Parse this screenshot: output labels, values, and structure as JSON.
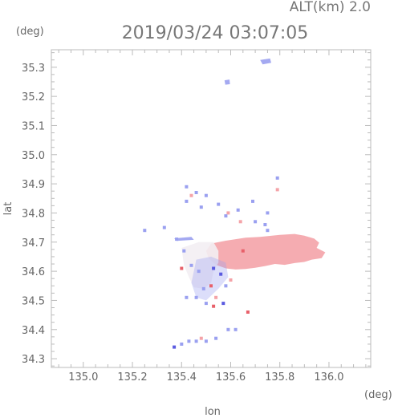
{
  "chart_data": {
    "type": "heatmap",
    "title": "2019/03/24 03:07:05",
    "subtitle": "ALT(km) 2.0",
    "xlabel": "lon",
    "ylabel": "lat",
    "x_unit": "(deg)",
    "y_unit": "(deg)",
    "xlim": [
      134.87,
      136.17
    ],
    "ylim": [
      34.27,
      35.36
    ],
    "x_ticks": [
      135.0,
      135.2,
      135.4,
      135.6,
      135.8,
      136.0
    ],
    "x_tick_labels": [
      "135.0",
      "135.2",
      "135.4",
      "135.6",
      "135.8",
      "136.0"
    ],
    "y_ticks": [
      34.3,
      34.4,
      34.5,
      34.6,
      34.7,
      34.8,
      34.9,
      35.0,
      35.1,
      35.2,
      35.3
    ],
    "y_tick_labels": [
      "34.3",
      "34.4",
      "34.5",
      "34.6",
      "34.7",
      "34.8",
      "34.9",
      "35.0",
      "35.1",
      "35.2",
      "35.3"
    ],
    "colors": {
      "positive": "#f4a3a8",
      "positive_strong": "#e8606a",
      "negative": "#9aa0f0",
      "negative_strong": "#5a5ae0",
      "neutral": "#f3eef3"
    },
    "regions": [
      {
        "kind": "main-echo",
        "sign": "positive",
        "polygon": [
          [
            135.52,
            34.695
          ],
          [
            135.58,
            34.705
          ],
          [
            135.66,
            34.715
          ],
          [
            135.72,
            34.718
          ],
          [
            135.8,
            34.725
          ],
          [
            135.86,
            34.728
          ],
          [
            135.9,
            34.722
          ],
          [
            135.94,
            34.712
          ],
          [
            135.96,
            34.698
          ],
          [
            135.95,
            34.68
          ],
          [
            135.985,
            34.665
          ],
          [
            135.97,
            34.645
          ],
          [
            135.93,
            34.64
          ],
          [
            135.9,
            34.632
          ],
          [
            135.86,
            34.628
          ],
          [
            135.82,
            34.622
          ],
          [
            135.78,
            34.625
          ],
          [
            135.74,
            34.618
          ],
          [
            135.7,
            34.612
          ],
          [
            135.66,
            34.608
          ],
          [
            135.62,
            34.606
          ],
          [
            135.58,
            34.61
          ],
          [
            135.54,
            34.622
          ],
          [
            135.51,
            34.645
          ],
          [
            135.5,
            34.67
          ]
        ]
      },
      {
        "kind": "neutral-echo",
        "sign": "neutral",
        "polygon": [
          [
            135.4,
            34.68
          ],
          [
            135.47,
            34.7
          ],
          [
            135.53,
            34.7
          ],
          [
            135.55,
            34.67
          ],
          [
            135.55,
            34.63
          ],
          [
            135.53,
            34.6
          ],
          [
            135.52,
            34.56
          ],
          [
            135.49,
            34.54
          ],
          [
            135.45,
            34.545
          ],
          [
            135.43,
            34.58
          ],
          [
            135.41,
            34.62
          ]
        ]
      },
      {
        "kind": "mixed-echo",
        "sign": "negative",
        "polygon": [
          [
            135.46,
            34.64
          ],
          [
            135.52,
            34.65
          ],
          [
            135.58,
            34.63
          ],
          [
            135.59,
            34.58
          ],
          [
            135.55,
            34.54
          ],
          [
            135.5,
            34.5
          ],
          [
            135.46,
            34.51
          ],
          [
            135.44,
            34.56
          ]
        ]
      },
      {
        "kind": "cell",
        "sign": "negative",
        "polygon": [
          [
            135.72,
            35.325
          ],
          [
            135.76,
            35.33
          ],
          [
            135.765,
            35.315
          ],
          [
            135.73,
            35.31
          ]
        ]
      },
      {
        "kind": "cell",
        "sign": "negative",
        "polygon": [
          [
            135.575,
            35.255
          ],
          [
            135.595,
            35.258
          ],
          [
            135.597,
            35.242
          ],
          [
            135.578,
            35.24
          ]
        ]
      },
      {
        "kind": "cell",
        "sign": "negative",
        "polygon": [
          [
            135.37,
            34.713
          ],
          [
            135.44,
            34.718
          ],
          [
            135.45,
            34.708
          ],
          [
            135.38,
            34.704
          ]
        ]
      }
    ],
    "speckles": [
      {
        "lon": 135.42,
        "lat": 34.89,
        "sign": "negative"
      },
      {
        "lon": 135.46,
        "lat": 34.87,
        "sign": "negative"
      },
      {
        "lon": 135.44,
        "lat": 34.86,
        "sign": "positive"
      },
      {
        "lon": 135.5,
        "lat": 34.86,
        "sign": "negative"
      },
      {
        "lon": 135.42,
        "lat": 34.84,
        "sign": "negative"
      },
      {
        "lon": 135.48,
        "lat": 34.82,
        "sign": "negative"
      },
      {
        "lon": 135.55,
        "lat": 34.83,
        "sign": "negative"
      },
      {
        "lon": 135.59,
        "lat": 34.8,
        "sign": "positive"
      },
      {
        "lon": 135.58,
        "lat": 34.79,
        "sign": "negative"
      },
      {
        "lon": 135.63,
        "lat": 34.81,
        "sign": "negative"
      },
      {
        "lon": 135.64,
        "lat": 34.77,
        "sign": "positive"
      },
      {
        "lon": 135.69,
        "lat": 34.84,
        "sign": "negative"
      },
      {
        "lon": 135.7,
        "lat": 34.77,
        "sign": "negative"
      },
      {
        "lon": 135.74,
        "lat": 34.76,
        "sign": "negative"
      },
      {
        "lon": 135.75,
        "lat": 34.8,
        "sign": "negative"
      },
      {
        "lon": 135.79,
        "lat": 34.92,
        "sign": "negative"
      },
      {
        "lon": 135.79,
        "lat": 34.88,
        "sign": "positive"
      },
      {
        "lon": 135.75,
        "lat": 34.74,
        "sign": "negative"
      },
      {
        "lon": 135.33,
        "lat": 34.75,
        "sign": "negative"
      },
      {
        "lon": 135.25,
        "lat": 34.74,
        "sign": "negative"
      },
      {
        "lon": 135.38,
        "lat": 34.71,
        "sign": "negative"
      },
      {
        "lon": 135.41,
        "lat": 34.67,
        "sign": "negative"
      },
      {
        "lon": 135.44,
        "lat": 34.62,
        "sign": "negative"
      },
      {
        "lon": 135.4,
        "lat": 34.61,
        "sign": "positive_strong"
      },
      {
        "lon": 135.47,
        "lat": 34.6,
        "sign": "negative"
      },
      {
        "lon": 135.53,
        "lat": 34.61,
        "sign": "negative_strong"
      },
      {
        "lon": 135.56,
        "lat": 34.59,
        "sign": "negative_strong"
      },
      {
        "lon": 135.58,
        "lat": 34.55,
        "sign": "negative"
      },
      {
        "lon": 135.52,
        "lat": 34.55,
        "sign": "positive_strong"
      },
      {
        "lon": 135.49,
        "lat": 34.54,
        "sign": "negative"
      },
      {
        "lon": 135.54,
        "lat": 34.51,
        "sign": "positive"
      },
      {
        "lon": 135.57,
        "lat": 34.49,
        "sign": "negative_strong"
      },
      {
        "lon": 135.5,
        "lat": 34.49,
        "sign": "negative"
      },
      {
        "lon": 135.53,
        "lat": 34.48,
        "sign": "positive_strong"
      },
      {
        "lon": 135.42,
        "lat": 34.51,
        "sign": "negative"
      },
      {
        "lon": 135.46,
        "lat": 34.51,
        "sign": "negative"
      },
      {
        "lon": 135.67,
        "lat": 34.46,
        "sign": "positive_strong"
      },
      {
        "lon": 135.59,
        "lat": 34.4,
        "sign": "negative"
      },
      {
        "lon": 135.62,
        "lat": 34.4,
        "sign": "negative"
      },
      {
        "lon": 135.43,
        "lat": 34.36,
        "sign": "negative"
      },
      {
        "lon": 135.46,
        "lat": 34.36,
        "sign": "negative"
      },
      {
        "lon": 135.5,
        "lat": 34.36,
        "sign": "negative"
      },
      {
        "lon": 135.54,
        "lat": 34.37,
        "sign": "negative"
      },
      {
        "lon": 135.4,
        "lat": 34.35,
        "sign": "negative"
      },
      {
        "lon": 135.37,
        "lat": 34.34,
        "sign": "negative_strong"
      },
      {
        "lon": 135.48,
        "lat": 34.37,
        "sign": "positive"
      },
      {
        "lon": 135.65,
        "lat": 34.67,
        "sign": "positive_strong"
      },
      {
        "lon": 135.6,
        "lat": 34.57,
        "sign": "positive"
      }
    ]
  }
}
